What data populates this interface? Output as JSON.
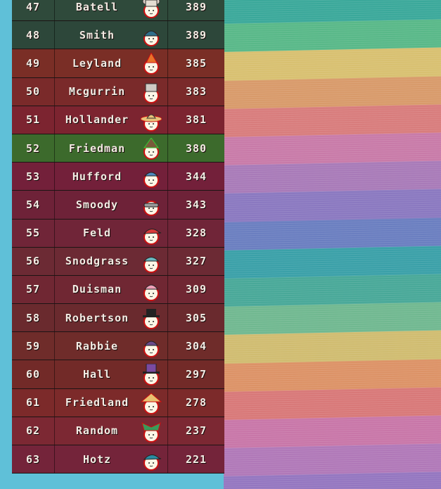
{
  "leaderboard": [
    {
      "rank": "47",
      "name": "Batell",
      "score": "389",
      "hat": "bear-ears-icon",
      "row_color": "#2f4a3b"
    },
    {
      "rank": "48",
      "name": "Smith",
      "score": "389",
      "hat": "blue-cap-icon",
      "row_color": "#2d473a"
    },
    {
      "rank": "49",
      "name": "Leyland",
      "score": "385",
      "hat": "orange-party-hat-icon",
      "row_color": "#7a2e26"
    },
    {
      "rank": "50",
      "name": "Mcgurrin",
      "score": "383",
      "hat": "grey-bucket-hat-icon",
      "row_color": "#7a2a2a"
    },
    {
      "rank": "51",
      "name": "Hollander",
      "score": "381",
      "hat": "straw-sombrero-icon",
      "row_color": "#7c2430"
    },
    {
      "rank": "52",
      "name": "Friedman",
      "score": "380",
      "hat": "green-witch-hat-icon",
      "row_color": "#3c6a2c"
    },
    {
      "rank": "53",
      "name": "Hufford",
      "score": "344",
      "hat": "blue-hat-icon",
      "row_color": "#73203a"
    },
    {
      "rank": "54",
      "name": "Smoody",
      "score": "343",
      "hat": "goggles-icon",
      "row_color": "#6e2238"
    },
    {
      "rank": "55",
      "name": "Feld",
      "score": "328",
      "hat": "red-cap-icon",
      "row_color": "#702538"
    },
    {
      "rank": "56",
      "name": "Snodgrass",
      "score": "327",
      "hat": "teal-bucket-hat-icon",
      "row_color": "#6c2a34"
    },
    {
      "rank": "57",
      "name": "Duisman",
      "score": "309",
      "hat": "pink-beanie-icon",
      "row_color": "#702733"
    },
    {
      "rank": "58",
      "name": "Robertson",
      "score": "305",
      "hat": "black-top-hat-icon",
      "row_color": "#6a2a2e"
    },
    {
      "rank": "59",
      "name": "Rabbie",
      "score": "304",
      "hat": "purple-beanie-icon",
      "row_color": "#6f2c2a"
    },
    {
      "rank": "60",
      "name": "Hall",
      "score": "297",
      "hat": "purple-top-hat-icon",
      "row_color": "#722a28"
    },
    {
      "rank": "61",
      "name": "Friedland",
      "score": "278",
      "hat": "conical-hat-icon",
      "row_color": "#7c2a2a"
    },
    {
      "rank": "62",
      "name": "Random",
      "score": "237",
      "hat": "jester-hat-icon",
      "row_color": "#7c2833"
    },
    {
      "rank": "63",
      "name": "Hotz",
      "score": "221",
      "hat": "teal-cap-icon",
      "row_color": "#74243a"
    }
  ],
  "stripe_colors": [
    "#3aa89a",
    "#58b888",
    "#d8c070",
    "#d89a6a",
    "#d87c7c",
    "#c87aa8",
    "#a87ab8",
    "#8a78c0",
    "#6a7ec0",
    "#3aa0a8",
    "#48a898",
    "#70b890",
    "#d0bc70",
    "#dc9266",
    "#d87878",
    "#c876a8",
    "#b078b8",
    "#9476c0"
  ],
  "theme": {
    "background": "#5fc0d8",
    "text": "#f4ece4"
  }
}
